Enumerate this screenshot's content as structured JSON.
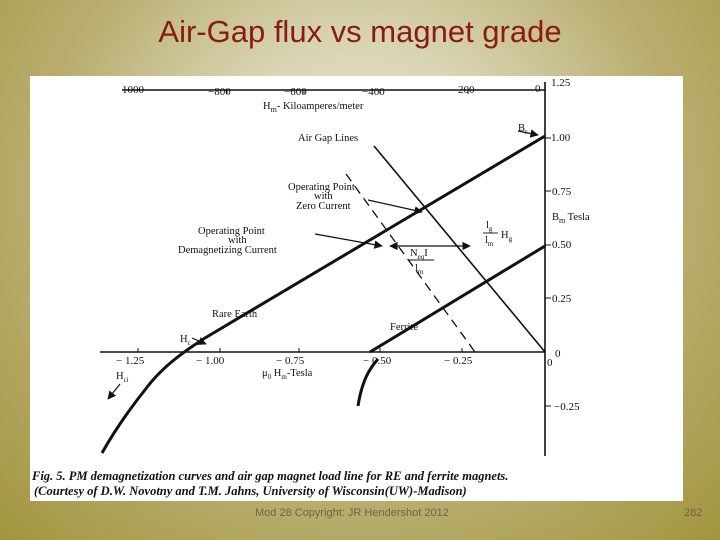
{
  "slide": {
    "title": "Air-Gap flux vs magnet grade",
    "footer": "Mod 28 Copyright: JR Hendershot 2012",
    "page_number": "282"
  },
  "figure": {
    "top_axis_ticks": [
      "1000",
      "−800",
      "−600",
      "−400",
      "200",
      "0"
    ],
    "top_axis_title": "H",
    "top_axis_title_sub": "m",
    "top_axis_title_rest": "- Kiloamperes/meter",
    "right_axis_ticks": [
      "1.25",
      "1.00",
      "0.75",
      "0.50",
      "0.25",
      "0",
      "−0.25"
    ],
    "right_axis_title": "B",
    "right_axis_title_sub": "m",
    "right_axis_title_rest": " Tesla",
    "bottom_axis_ticks": [
      "− 1.25",
      "− 1.00",
      "− 0.75",
      "− 0.50",
      "− 0.25",
      "0"
    ],
    "bottom_axis_title_mu": "μ",
    "bottom_axis_title_mu_sub": "0",
    "bottom_axis_title_h": " H",
    "bottom_axis_title_h_sub": "m",
    "bottom_axis_title_rest": "-Tesla",
    "labels": {
      "br": "B",
      "br_sub": "r",
      "air_gap_lines": "Air Gap Lines",
      "op_zero_line1": "Operating Point",
      "op_zero_line2": "with",
      "op_zero_line3": "Zero Current",
      "op_demag_line1": "Operating Point",
      "op_demag_line2": "with",
      "op_demag_line3": "Demagnetizing Current",
      "rare_earth": "Rare Earth",
      "ferrite": "Ferrite",
      "hc": "H",
      "hc_sub": "c",
      "hci": "H",
      "hci_sub": "ci",
      "neq_num": "N",
      "neq_num_sub": "eq",
      "neq_num_rest": "I",
      "neq_den": "l",
      "neq_den_sub": "m",
      "lg_num": "l",
      "lg_num_sub": "g",
      "lg_den": "l",
      "lg_den_sub": "m",
      "lg_h": "H",
      "lg_h_sub": "g"
    },
    "caption_line1": "Fig. 5. PM demagnetization curves and air gap magnet load line for RE and ferrite magnets.",
    "caption_line2": "(Courtesy of D.W. Novotny and T.M. Jahns, University of Wisconsin(UW)-Madison)"
  }
}
